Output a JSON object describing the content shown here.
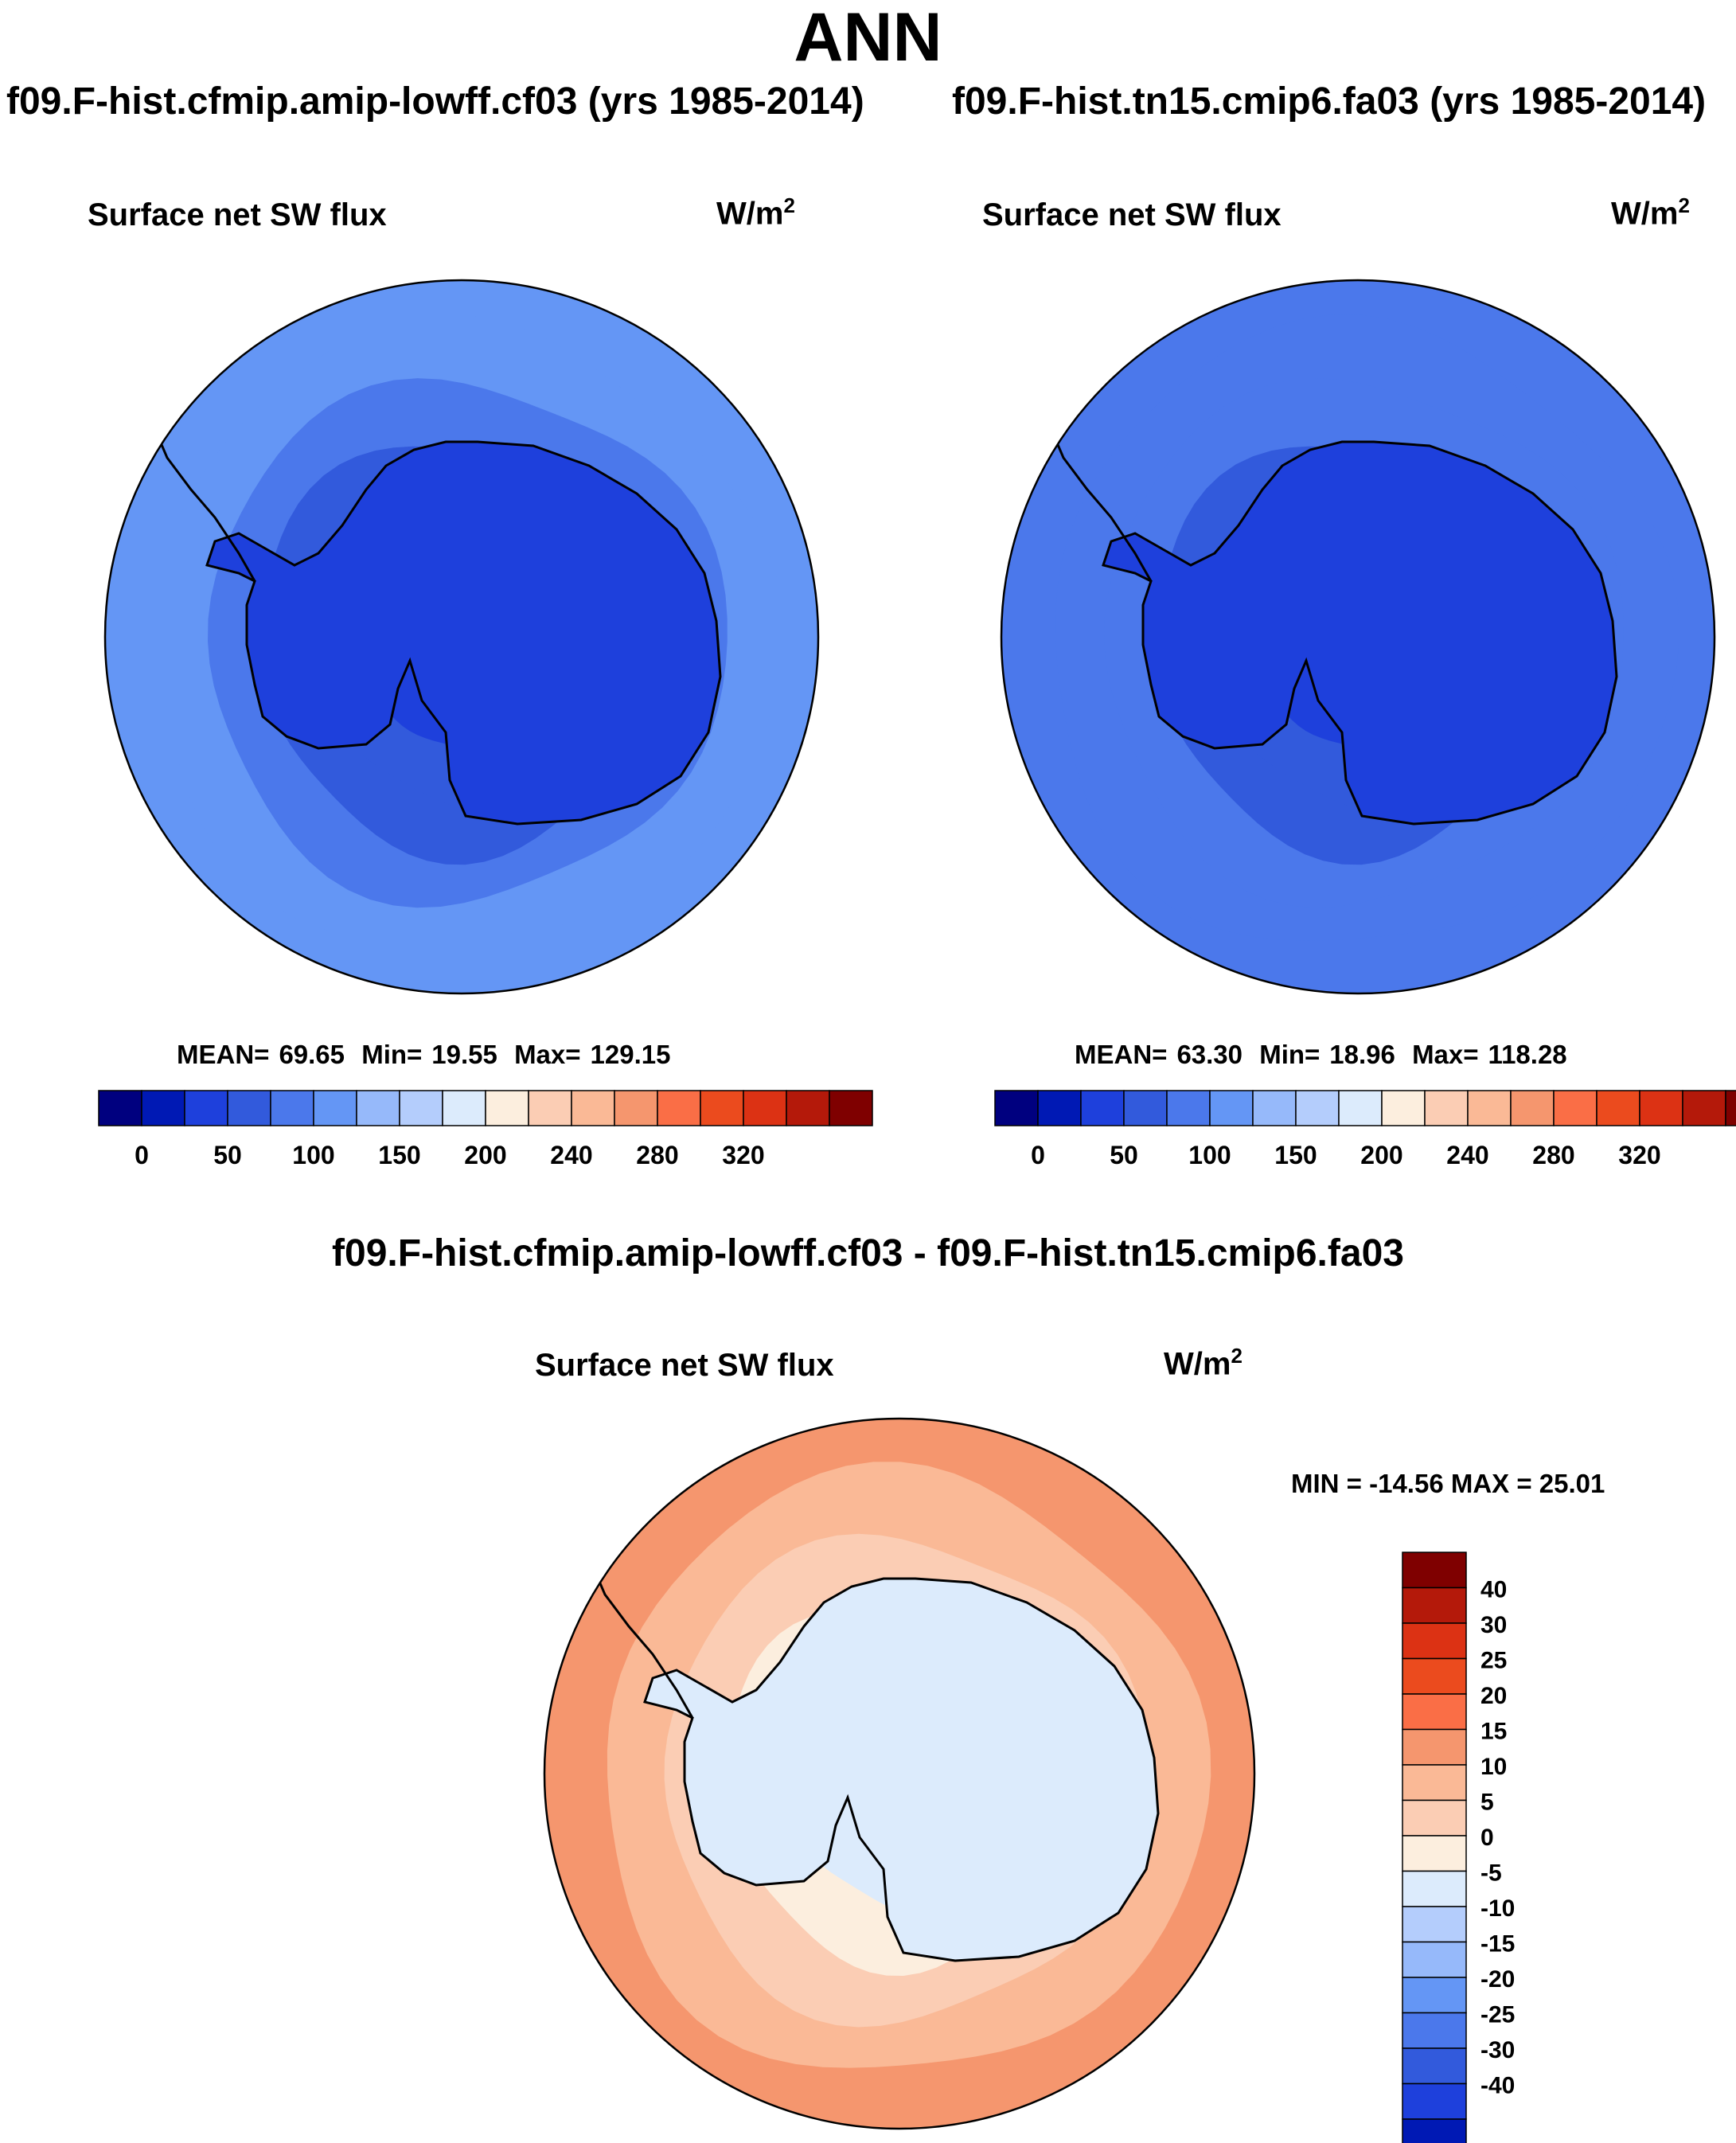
{
  "page": {
    "title": "ANN",
    "diff_title": "f09.F-hist.cfmip.amip-lowff.cf03 - f09.F-hist.tn15.cmip6.fa03"
  },
  "colors": {
    "land_outline": "#000000",
    "abs_palette": [
      "#00007f",
      "#0019b4",
      "#1e40dc",
      "#325adc",
      "#4b78eb",
      "#6496f5",
      "#96b9fa",
      "#b4cdfc",
      "#dcebfc",
      "#fceede",
      "#fbcdb4",
      "#fab996",
      "#f5966e",
      "#fa6e46",
      "#eb4b1e",
      "#dc3214",
      "#b4190a",
      "#7f0000"
    ],
    "diff_palette": [
      "#00007f",
      "#0019b4",
      "#1e40dc",
      "#325adc",
      "#4b78eb",
      "#6496f5",
      "#96b9fa",
      "#b4cdfc",
      "#dcebfc",
      "#fceede",
      "#fbcdb4",
      "#fab996",
      "#f5966e",
      "#fa6e46",
      "#eb4b1e",
      "#dc3214",
      "#b4190a",
      "#7f0000"
    ]
  },
  "chart_data": [
    {
      "type": "heatmap",
      "projection": "south-polar-stereographic",
      "case_title": "f09.F-hist.cfmip.amip-lowff.cf03 (yrs 1985-2014)",
      "title": "Surface net SW flux",
      "units": "W/m",
      "units_sup": "2",
      "stats": {
        "mean_label": "MEAN=",
        "mean": "69.65",
        "min_label": "Min=",
        "min": "19.55",
        "max_label": "Max=",
        "max": "129.15"
      },
      "field_rings_wm2": [
        110,
        100,
        85,
        70,
        55,
        40,
        25
      ],
      "colorbar": {
        "orientation": "horizontal",
        "levels": [
          0,
          25,
          50,
          75,
          100,
          125,
          150,
          175,
          200,
          220,
          240,
          260,
          280,
          300,
          320
        ],
        "tick_labels": [
          "0",
          "50",
          "100",
          "150",
          "200",
          "240",
          "280",
          "320"
        ]
      }
    },
    {
      "type": "heatmap",
      "projection": "south-polar-stereographic",
      "case_title": "f09.F-hist.tn15.cmip6.fa03 (yrs 1985-2014)",
      "title": "Surface net SW flux",
      "units": "W/m",
      "units_sup": "2",
      "stats": {
        "mean_label": "MEAN=",
        "mean": "63.30",
        "min_label": "Min=",
        "min": "18.96",
        "max_label": "Max=",
        "max": "118.28"
      },
      "field_rings_wm2": [
        95,
        85,
        75,
        60,
        50,
        35,
        25
      ],
      "colorbar": {
        "orientation": "horizontal",
        "levels": [
          0,
          25,
          50,
          75,
          100,
          125,
          150,
          175,
          200,
          220,
          240,
          260,
          280,
          300,
          320
        ],
        "tick_labels": [
          "0",
          "50",
          "100",
          "150",
          "200",
          "240",
          "280",
          "320"
        ]
      }
    },
    {
      "type": "heatmap",
      "projection": "south-polar-stereographic",
      "title": "Surface net SW flux",
      "units": "W/m",
      "units_sup": "2",
      "stats_text": "MIN = -14.56 MAX =  25.01",
      "field_rings_wm2": [
        22,
        17,
        12,
        8,
        3,
        -2
      ],
      "colorbar": {
        "orientation": "vertical",
        "tick_labels": [
          "40",
          "30",
          "25",
          "20",
          "15",
          "10",
          "5",
          "0",
          "-5",
          "-10",
          "-15",
          "-20",
          "-25",
          "-30",
          "-40"
        ]
      }
    }
  ]
}
